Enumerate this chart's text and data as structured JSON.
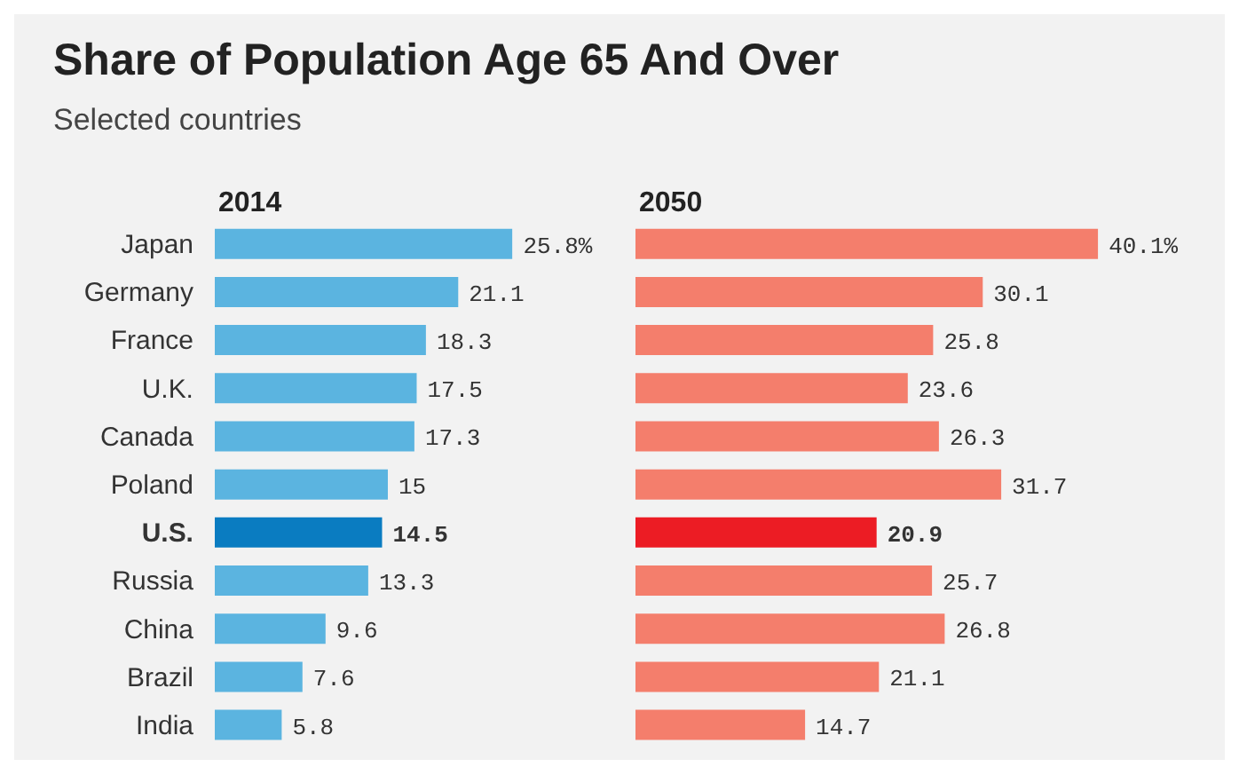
{
  "chart_data": [
    {
      "type": "bar",
      "orientation": "horizontal",
      "title": "Share of Population Age 65 And Over",
      "subtitle": "Selected countries",
      "categories": [
        "Japan",
        "Germany",
        "France",
        "U.K.",
        "Canada",
        "Poland",
        "U.S.",
        "Russia",
        "China",
        "Brazil",
        "India"
      ],
      "tick_labels": "y",
      "series": [
        {
          "name": "2014",
          "color": "#5bb4e0",
          "colors": [
            "#5bb4e0",
            "#5bb4e0",
            "#5bb4e0",
            "#5bb4e0",
            "#5bb4e0",
            "#5bb4e0",
            "#0a7cc1",
            "#5bb4e0",
            "#5bb4e0",
            "#5bb4e0",
            "#5bb4e0"
          ],
          "values": [
            25.8,
            21.1,
            18.3,
            17.5,
            17.3,
            15,
            14.5,
            13.3,
            9.6,
            7.6,
            5.8
          ],
          "value_labels": [
            "25.8%",
            "21.1",
            "18.3",
            "17.5",
            "17.3",
            "15",
            "14.5",
            "13.3",
            "9.6",
            "7.6",
            "5.8"
          ]
        }
      ]
    },
    {
      "type": "bar",
      "orientation": "horizontal",
      "categories": [
        null,
        null,
        null,
        null,
        null,
        null,
        null,
        null,
        null,
        null,
        null
      ],
      "tick_labels": false,
      "series": [
        {
          "name": "2050",
          "color": "#f47e6c",
          "colors": [
            "#f47e6c",
            "#f47e6c",
            "#f47e6c",
            "#f47e6c",
            "#f47e6c",
            "#f47e6c",
            "#ec1c24",
            "#f47e6c",
            "#f47e6c",
            "#f47e6c",
            "#f47e6c"
          ],
          "values": [
            40.1,
            30.1,
            25.8,
            23.6,
            26.3,
            31.7,
            20.9,
            25.7,
            26.8,
            21.1,
            14.7
          ],
          "value_labels": [
            "40.1%",
            "30.1",
            "25.8",
            "23.6",
            "26.3",
            "31.7",
            "20.9",
            "25.7",
            "26.8",
            "21.1",
            "14.7"
          ]
        }
      ]
    }
  ]
}
